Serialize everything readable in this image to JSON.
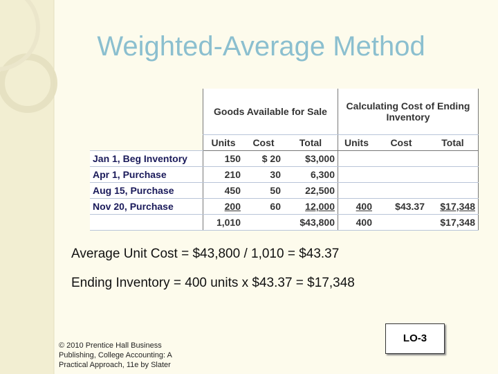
{
  "title": "Weighted-Average Method",
  "table": {
    "group_headers": [
      "Goods Available for Sale",
      "Calculating Cost of Ending Inventory"
    ],
    "column_headers": [
      "Units",
      "Cost",
      "Total",
      "Units",
      "Cost",
      "Total"
    ],
    "rows": [
      [
        "Jan 1, Beg Inventory",
        "150",
        "$ 20",
        "$3,000",
        null,
        null,
        null
      ],
      [
        "Apr 1, Purchase",
        "210",
        "30",
        "6,300",
        null,
        null,
        null
      ],
      [
        "Aug 15, Purchase",
        "450",
        "50",
        "22,500",
        null,
        null,
        null
      ],
      [
        "Nov 20, Purchase",
        "200",
        "60",
        "12,000",
        "400",
        "$43.37",
        "$17,348"
      ],
      [
        null,
        "1,010",
        null,
        "$43,800",
        "400",
        null,
        "$17,348"
      ]
    ]
  },
  "formulas": [
    "Average Unit Cost = $43,800 / 1,010 = $43.37",
    "Ending Inventory = 400 units x $43.37 = $17,348"
  ],
  "footer": {
    "copyright": "© 2010 Prentice Hall Business Publishing, College Accounting: A Practical Approach, 11e by Slater",
    "objective": "LO-3"
  }
}
